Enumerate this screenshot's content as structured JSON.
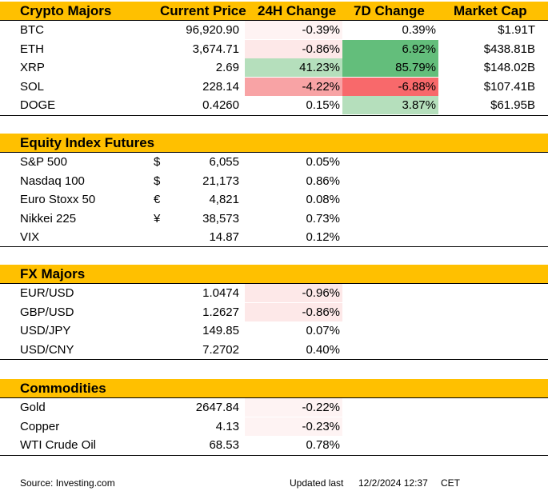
{
  "crypto": {
    "headers": [
      "Crypto Majors",
      "Current Price",
      "24H Change",
      "7D Change",
      "Market Cap"
    ],
    "rows": [
      {
        "name": "BTC",
        "price": "96,920.90",
        "h24": "-0.39%",
        "d7": "0.39%",
        "cap": "$1.91T",
        "h24_bg": "#FEF3F3",
        "d7_bg": "#FFFFFF"
      },
      {
        "name": "ETH",
        "price": "3,674.71",
        "h24": "-0.86%",
        "d7": "6.92%",
        "cap": "$438.81B",
        "h24_bg": "#FDE8E8",
        "d7_bg": "#63BE7B"
      },
      {
        "name": "XRP",
        "price": "2.69",
        "h24": "41.23%",
        "d7": "85.79%",
        "cap": "$148.02B",
        "h24_bg": "#B5DFBC",
        "d7_bg": "#63BE7B"
      },
      {
        "name": "SOL",
        "price": "228.14",
        "h24": "-4.22%",
        "d7": "-6.88%",
        "cap": "$107.41B",
        "h24_bg": "#F8A3A5",
        "d7_bg": "#F8696B"
      },
      {
        "name": "DOGE",
        "price": "0.4260",
        "h24": "0.15%",
        "d7": "3.87%",
        "cap": "$61.95B",
        "h24_bg": "#FFFFFF",
        "d7_bg": "#B5DFBC"
      }
    ]
  },
  "equity": {
    "header": "Equity Index Futures",
    "rows": [
      {
        "name": "S&P 500",
        "cur": "$",
        "price": "6,055",
        "h24": "0.05%",
        "h24_bg": "#FFFFFF"
      },
      {
        "name": "Nasdaq 100",
        "cur": "$",
        "price": "21,173",
        "h24": "0.86%",
        "h24_bg": "#FFFFFF"
      },
      {
        "name": "Euro Stoxx 50",
        "cur": "€",
        "price": "4,821",
        "h24": "0.08%",
        "h24_bg": "#FFFFFF"
      },
      {
        "name": "Nikkei 225",
        "cur": "¥",
        "price": "38,573",
        "h24": "0.73%",
        "h24_bg": "#FFFFFF"
      },
      {
        "name": "VIX",
        "cur": "",
        "price": "14.87",
        "h24": "0.12%",
        "h24_bg": "#FFFFFF"
      }
    ]
  },
  "fx": {
    "header": "FX Majors",
    "rows": [
      {
        "name": "EUR/USD",
        "price": "1.0474",
        "h24": "-0.96%",
        "h24_bg": "#FDE8E8"
      },
      {
        "name": "GBP/USD",
        "price": "1.2627",
        "h24": "-0.86%",
        "h24_bg": "#FDE8E8"
      },
      {
        "name": "USD/JPY",
        "price": "149.85",
        "h24": "0.07%",
        "h24_bg": "#FFFFFF"
      },
      {
        "name": "USD/CNY",
        "price": "7.2702",
        "h24": "0.40%",
        "h24_bg": "#FFFFFF"
      }
    ]
  },
  "commodities": {
    "header": "Commodities",
    "rows": [
      {
        "name": "Gold",
        "price": "2647.84",
        "h24": "-0.22%",
        "h24_bg": "#FEF3F3"
      },
      {
        "name": "Copper",
        "price": "4.13",
        "h24": "-0.23%",
        "h24_bg": "#FEF3F3"
      },
      {
        "name": "WTI Crude Oil",
        "price": "68.53",
        "h24": "0.78%",
        "h24_bg": "#FFFFFF"
      }
    ]
  },
  "footer": {
    "source": "Source: Investing.com",
    "updated_label": "Updated last",
    "timestamp": "12/2/2024 12:37",
    "timezone": "CET"
  }
}
